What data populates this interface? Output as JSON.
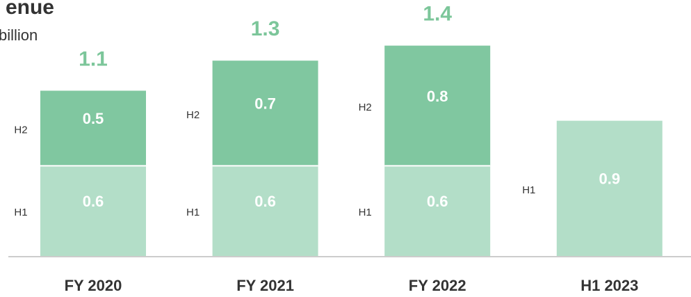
{
  "chart_data": {
    "type": "stacked_bar",
    "title": "enue",
    "subtitle": "billion",
    "categories": [
      "FY 2020",
      "FY 2021",
      "FY 2022",
      "H1 2023"
    ],
    "series": [
      {
        "name": "H1",
        "color": "#b3dec8",
        "values": [
          0.6,
          0.6,
          0.6,
          0.9
        ]
      },
      {
        "name": "H2",
        "color": "#80c7a0",
        "values": [
          0.5,
          0.7,
          0.8,
          null
        ]
      }
    ],
    "totals": [
      1.1,
      1.3,
      1.4,
      null
    ],
    "total_color": "#7cc69a",
    "ylim": [
      0,
      1.5
    ]
  }
}
